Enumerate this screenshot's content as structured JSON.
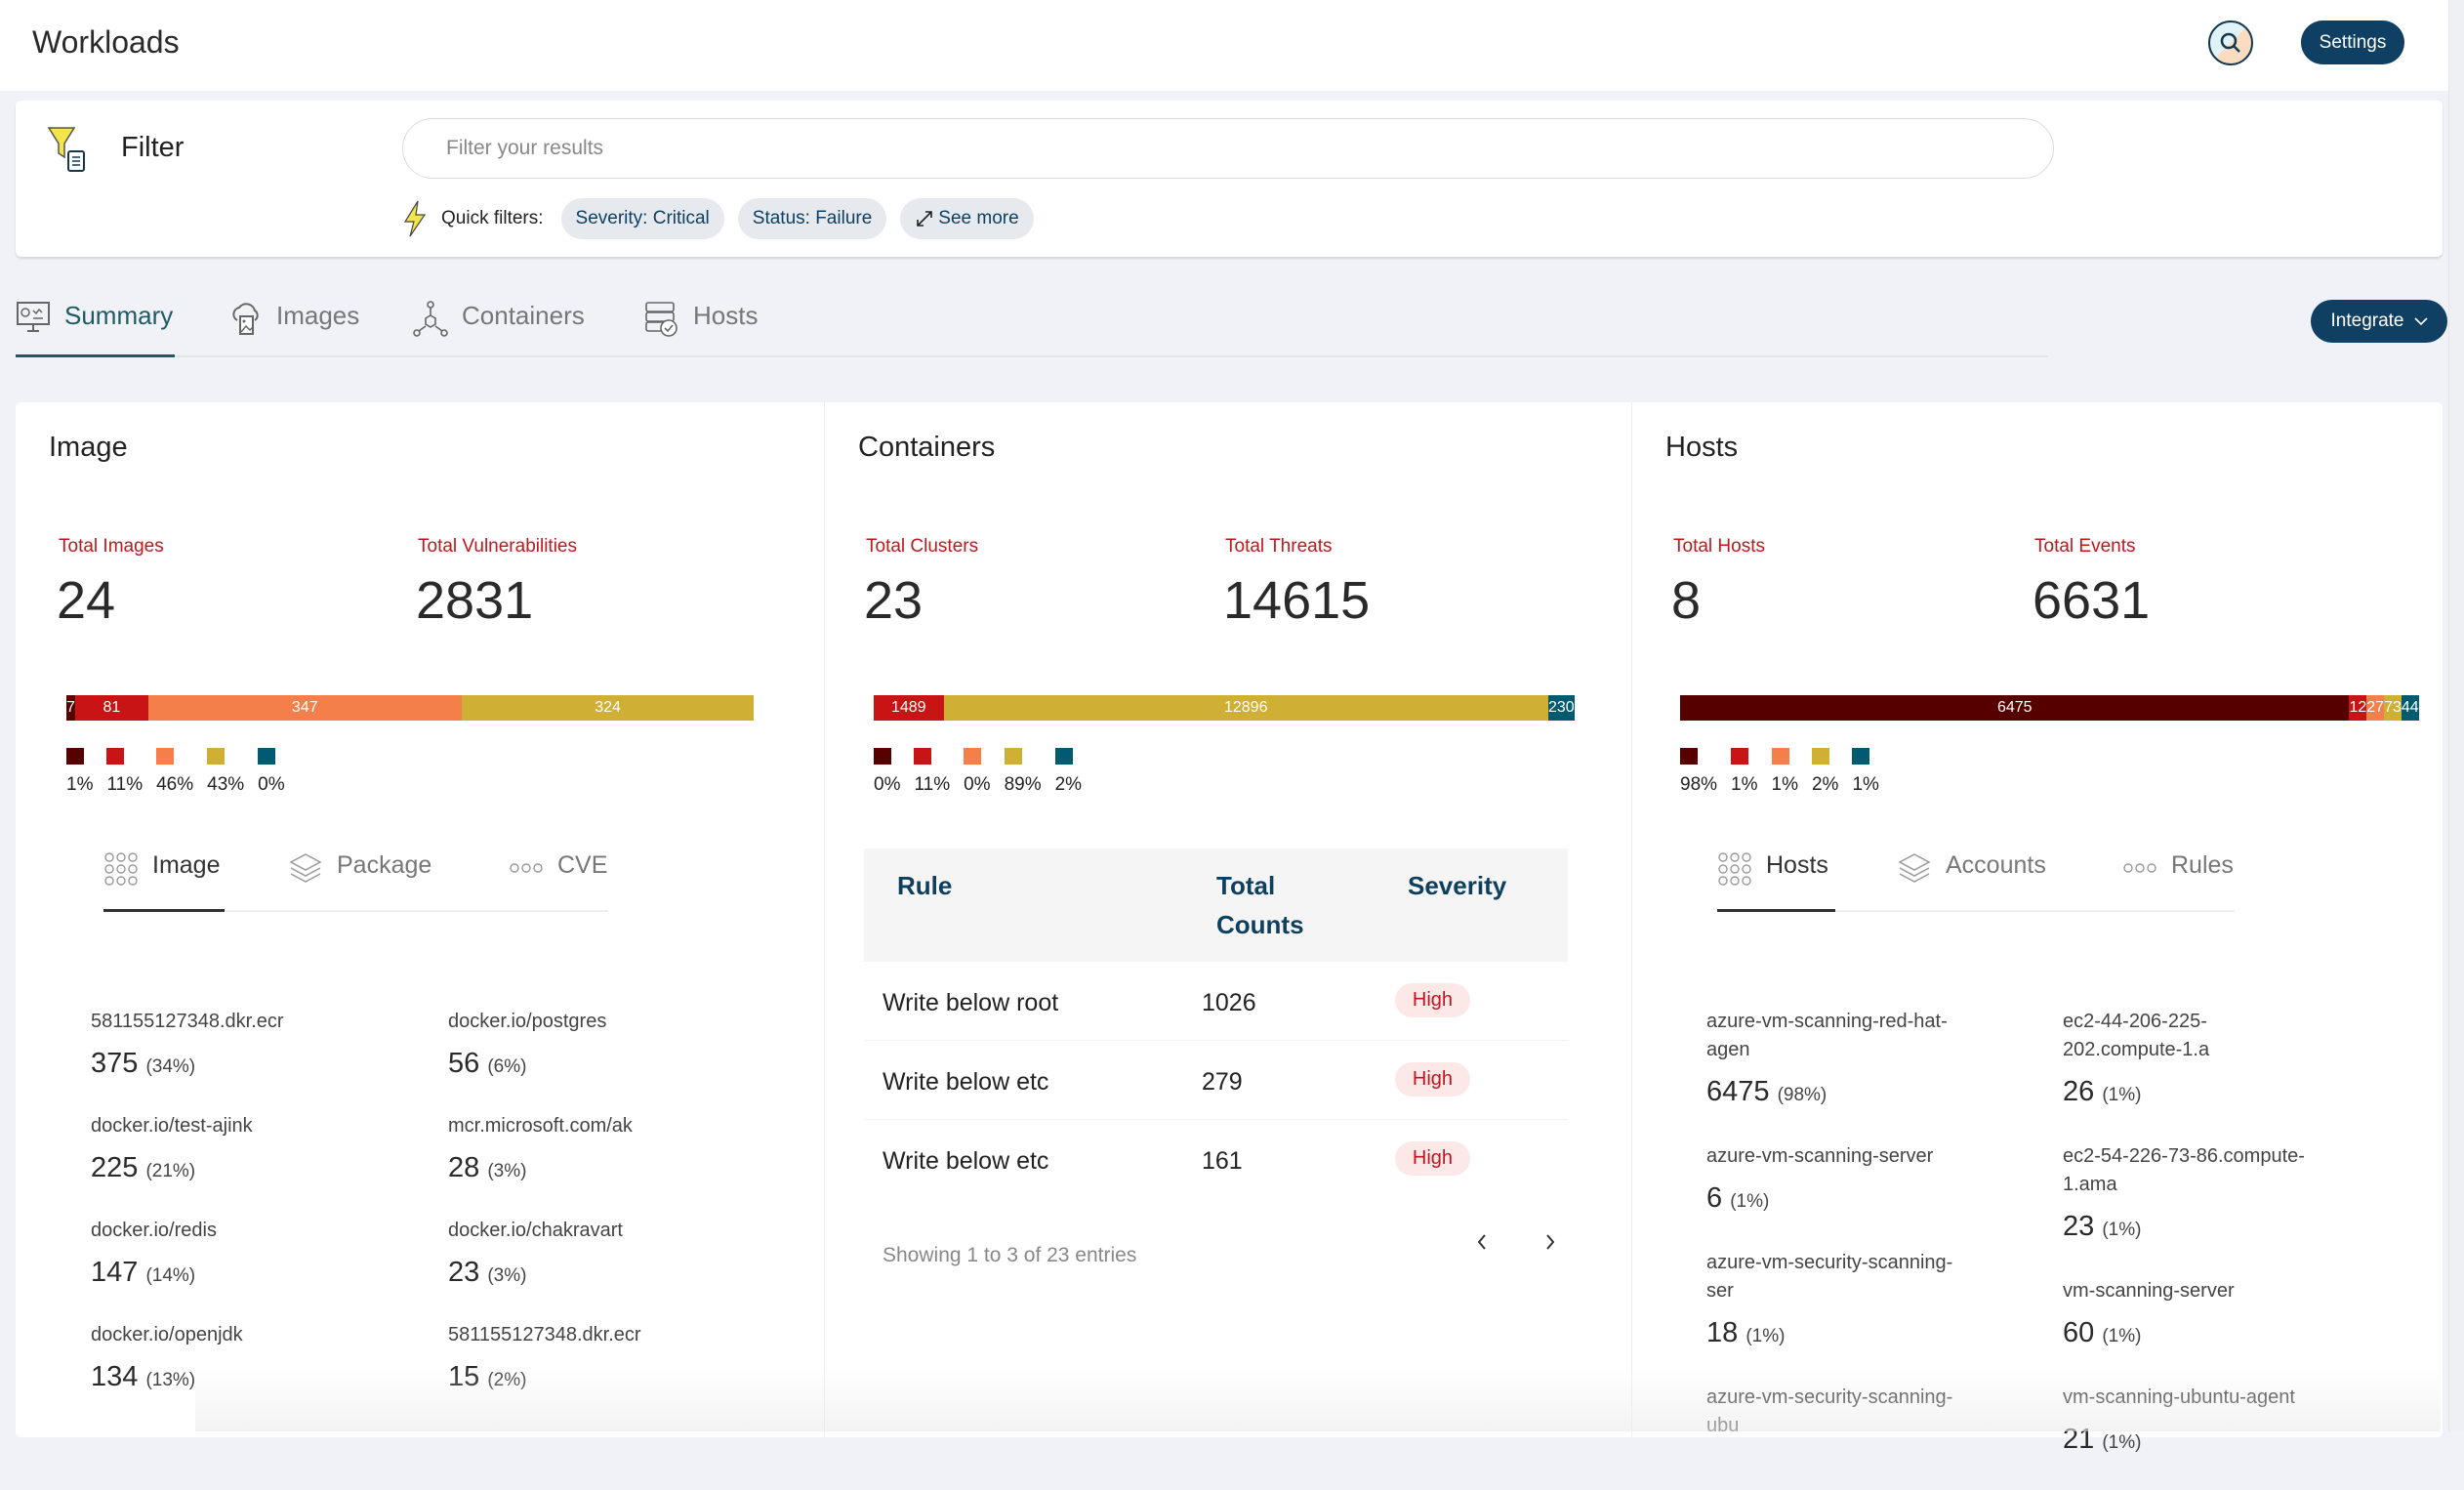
{
  "header": {
    "title": "Workloads",
    "settings_label": "Settings",
    "search_icon": "search-icon"
  },
  "filter": {
    "title": "Filter",
    "placeholder": "Filter your results",
    "value": "",
    "quick_filters_label": "Quick filters:",
    "chips": [
      "Severity: Critical",
      "Status: Failure",
      "See more"
    ]
  },
  "tabs": [
    {
      "label": "Summary",
      "icon": "summary-monitor-icon",
      "active": true
    },
    {
      "label": "Images",
      "icon": "image-cloud-icon"
    },
    {
      "label": "Containers",
      "icon": "containers-network-icon"
    },
    {
      "label": "Hosts",
      "icon": "hosts-server-icon"
    }
  ],
  "integrate_label": "Integrate",
  "severity_colors": [
    "#560000",
    "#c81414",
    "#f57f4b",
    "#cfb034",
    "#005a70"
  ],
  "image": {
    "title": "Image",
    "stats": [
      {
        "label": "Total Images",
        "value": "24"
      },
      {
        "label": "Total Vulnerabilities",
        "value": "2831"
      }
    ],
    "bar": {
      "values": [
        7,
        81,
        347,
        324,
        0
      ],
      "labels": [
        "7",
        "81",
        "347",
        "324",
        ""
      ]
    },
    "legend": [
      "1%",
      "11%",
      "46%",
      "43%",
      "0%"
    ],
    "subtabs": [
      "Image",
      "Package",
      "CVE"
    ],
    "items": [
      {
        "name": "581155127348.dkr.ecr",
        "value": "375",
        "pct": "(34%)"
      },
      {
        "name": "docker.io/test-ajink",
        "value": "225",
        "pct": "(21%)"
      },
      {
        "name": "docker.io/redis",
        "value": "147",
        "pct": "(14%)"
      },
      {
        "name": "docker.io/openjdk",
        "value": "134",
        "pct": "(13%)"
      },
      {
        "name": "docker.io/postgres",
        "value": "56",
        "pct": "(6%)"
      },
      {
        "name": "mcr.microsoft.com/ak",
        "value": "28",
        "pct": "(3%)"
      },
      {
        "name": "docker.io/chakravart",
        "value": "23",
        "pct": "(3%)"
      },
      {
        "name": "581155127348.dkr.ecr",
        "value": "15",
        "pct": "(2%)"
      }
    ]
  },
  "containers": {
    "title": "Containers",
    "stats": [
      {
        "label": "Total Clusters",
        "value": "23"
      },
      {
        "label": "Total Threats",
        "value": "14615"
      }
    ],
    "bar": {
      "values": [
        0,
        1489,
        0,
        12896,
        230
      ],
      "labels": [
        "",
        "1489",
        "",
        "12896",
        "230"
      ]
    },
    "legend": [
      "0%",
      "11%",
      "0%",
      "89%",
      "2%"
    ],
    "table": {
      "headers": [
        "Rule",
        "Total Counts",
        "Severity"
      ],
      "rows": [
        {
          "rule": "Write below root",
          "count": "1026",
          "severity": "High"
        },
        {
          "rule": "Write below etc",
          "count": "279",
          "severity": "High"
        },
        {
          "rule": "Write below etc",
          "count": "161",
          "severity": "High"
        }
      ],
      "footer": "Showing 1 to 3 of 23 entries"
    }
  },
  "hosts": {
    "title": "Hosts",
    "stats": [
      {
        "label": "Total Hosts",
        "value": "8"
      },
      {
        "label": "Total Events",
        "value": "6631"
      }
    ],
    "bar": {
      "values": [
        6475,
        12,
        27,
        73,
        44
      ],
      "labels": [
        "6475",
        "12",
        "27",
        "73",
        "44"
      ]
    },
    "legend": [
      "98%",
      "1%",
      "1%",
      "2%",
      "1%"
    ],
    "subtabs": [
      "Hosts",
      "Accounts",
      "Rules"
    ],
    "items": [
      {
        "name": "azure-vm-scanning-red-hat-agen",
        "value": "6475",
        "pct": "(98%)"
      },
      {
        "name": "azure-vm-scanning-server",
        "value": "6",
        "pct": "(1%)"
      },
      {
        "name": "azure-vm-security-scanning-ser",
        "value": "18",
        "pct": "(1%)"
      },
      {
        "name": "azure-vm-security-scanning-ubu",
        "value": "",
        "pct": ""
      },
      {
        "name": "ec2-44-206-225-202.compute-1.a",
        "value": "26",
        "pct": "(1%)"
      },
      {
        "name": "ec2-54-226-73-86.compute-1.ama",
        "value": "23",
        "pct": "(1%)"
      },
      {
        "name": "vm-scanning-server",
        "value": "60",
        "pct": "(1%)"
      },
      {
        "name": "vm-scanning-ubuntu-agent",
        "value": "21",
        "pct": "(1%)"
      }
    ]
  }
}
